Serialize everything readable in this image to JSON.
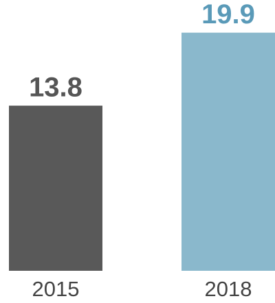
{
  "chart_data": {
    "type": "bar",
    "categories": [
      "2015",
      "2018"
    ],
    "values": [
      13.8,
      19.9
    ],
    "colors": [
      "#595959",
      "#8ab8cc"
    ],
    "label_colors": [
      "#555555",
      "#5a9ab8"
    ],
    "ylim": [
      0,
      22
    ]
  }
}
